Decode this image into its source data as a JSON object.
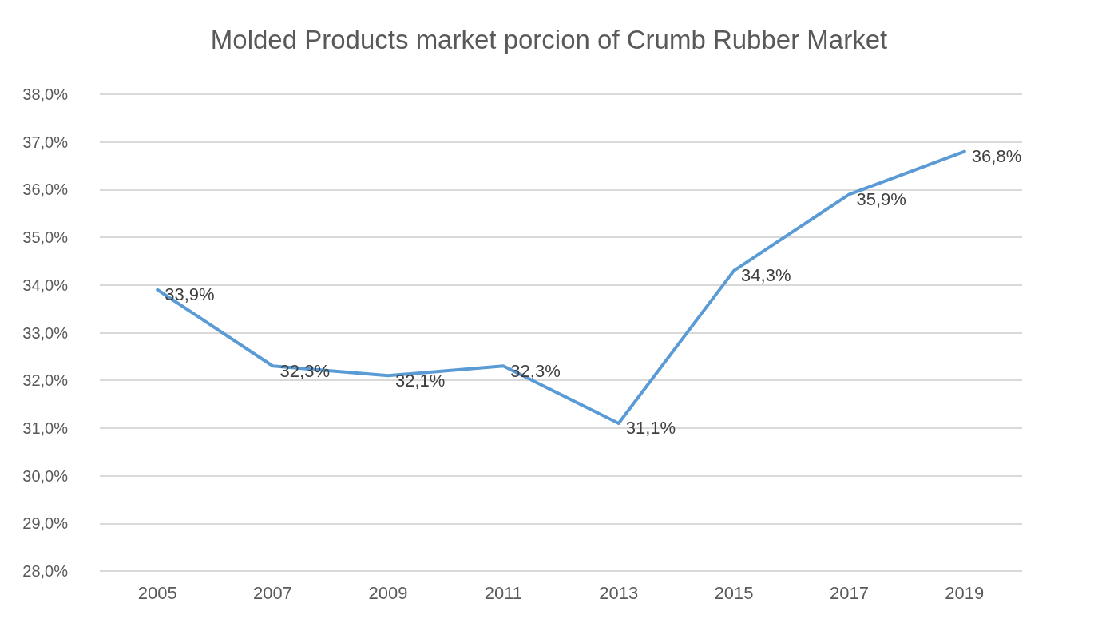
{
  "chart_data": {
    "type": "line",
    "title": "Molded Products market porcion of Crumb Rubber Market",
    "categories": [
      "2005",
      "2007",
      "2009",
      "2011",
      "2013",
      "2015",
      "2017",
      "2019"
    ],
    "series": [
      {
        "color": "#5b9bd5",
        "values": [
          33.9,
          32.3,
          32.1,
          32.3,
          31.1,
          34.3,
          35.9,
          36.8
        ],
        "value_labels": [
          "33,9%",
          "32,3%",
          "32,1%",
          "32,3%",
          "31,1%",
          "34,3%",
          "35,9%",
          "36,8%"
        ]
      }
    ],
    "ylim": [
      28,
      38
    ],
    "yticks": [
      {
        "value": 28,
        "label": "28,0%"
      },
      {
        "value": 29,
        "label": "29,0%"
      },
      {
        "value": 30,
        "label": "30,0%"
      },
      {
        "value": 31,
        "label": "31,0%"
      },
      {
        "value": 32,
        "label": "32,0%"
      },
      {
        "value": 33,
        "label": "33,0%"
      },
      {
        "value": 34,
        "label": "34,0%"
      },
      {
        "value": 35,
        "label": "35,0%"
      },
      {
        "value": 36,
        "label": "36,0%"
      },
      {
        "value": 37,
        "label": "37,0%"
      },
      {
        "value": 38,
        "label": "38,0%"
      }
    ],
    "grid": "y",
    "marker": "none",
    "line_style": "solid"
  }
}
